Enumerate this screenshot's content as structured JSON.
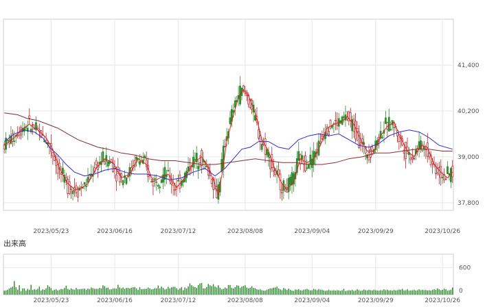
{
  "chart_data": [
    {
      "type": "candlestick",
      "x_ticks": [
        "2023/05/23",
        "2023/06/16",
        "2023/07/12",
        "2023/08/08",
        "2023/09/04",
        "2023/09/29",
        "2023/10/26"
      ],
      "y_ticks": [
        "41,400",
        "40,200",
        "39,000",
        "37,800"
      ],
      "ylim": [
        37600,
        42600
      ],
      "grid": true,
      "colors": {
        "up": "#2e8b2e",
        "down": "#b22222",
        "ma_short": "#e02020",
        "ma_mid": "#2a2ad0",
        "ma_long": "#8b2a2a"
      },
      "ma_short": [
        [
          0,
          39300
        ],
        [
          6,
          39500
        ],
        [
          10,
          39700
        ],
        [
          15,
          39850
        ],
        [
          20,
          39700
        ],
        [
          25,
          39500
        ],
        [
          29,
          39200
        ],
        [
          33,
          38700
        ],
        [
          38,
          38300
        ],
        [
          42,
          38150
        ],
        [
          45,
          38150
        ],
        [
          50,
          38300
        ],
        [
          55,
          38700
        ],
        [
          60,
          38950
        ],
        [
          65,
          38850
        ],
        [
          70,
          38450
        ],
        [
          75,
          38550
        ],
        [
          80,
          38950
        ],
        [
          85,
          38800
        ],
        [
          89,
          38350
        ],
        [
          93,
          38450
        ],
        [
          98,
          38550
        ],
        [
          103,
          38200
        ],
        [
          108,
          38450
        ],
        [
          113,
          38850
        ],
        [
          118,
          39000
        ],
        [
          121,
          38800
        ],
        [
          125,
          38400
        ],
        [
          128,
          38000
        ],
        [
          130,
          38500
        ],
        [
          133,
          39400
        ],
        [
          137,
          40100
        ],
        [
          140,
          40550
        ],
        [
          143,
          40750
        ],
        [
          146,
          40600
        ],
        [
          150,
          40150
        ],
        [
          154,
          39450
        ],
        [
          158,
          39150
        ],
        [
          162,
          38650
        ],
        [
          166,
          38300
        ],
        [
          169,
          38150
        ],
        [
          173,
          38350
        ],
        [
          177,
          38950
        ],
        [
          181,
          38850
        ],
        [
          185,
          38950
        ],
        [
          189,
          39300
        ],
        [
          193,
          39750
        ],
        [
          197,
          39850
        ],
        [
          201,
          39900
        ],
        [
          205,
          40050
        ],
        [
          209,
          39850
        ],
        [
          213,
          39450
        ],
        [
          217,
          39150
        ],
        [
          221,
          39150
        ],
        [
          225,
          39550
        ],
        [
          229,
          39800
        ],
        [
          233,
          39900
        ],
        [
          237,
          39500
        ],
        [
          241,
          39150
        ],
        [
          245,
          39000
        ],
        [
          249,
          39300
        ],
        [
          253,
          39250
        ],
        [
          257,
          38800
        ],
        [
          261,
          38600
        ],
        [
          265,
          38450
        ],
        [
          268,
          38600
        ]
      ],
      "ma_mid": [
        [
          0,
          39400
        ],
        [
          6,
          39600
        ],
        [
          12,
          39700
        ],
        [
          18,
          39650
        ],
        [
          23,
          39500
        ],
        [
          27,
          39250
        ],
        [
          32,
          39050
        ],
        [
          37,
          38800
        ],
        [
          42,
          38600
        ],
        [
          48,
          38500
        ],
        [
          54,
          38550
        ],
        [
          60,
          38650
        ],
        [
          66,
          38700
        ],
        [
          72,
          38600
        ],
        [
          78,
          38550
        ],
        [
          85,
          38550
        ],
        [
          92,
          38500
        ],
        [
          99,
          38400
        ],
        [
          106,
          38450
        ],
        [
          113,
          38600
        ],
        [
          120,
          38700
        ],
        [
          126,
          38500
        ],
        [
          132,
          38700
        ],
        [
          137,
          38950
        ],
        [
          142,
          39200
        ],
        [
          147,
          39250
        ],
        [
          152,
          39400
        ],
        [
          158,
          39400
        ],
        [
          164,
          39250
        ],
        [
          170,
          39200
        ],
        [
          176,
          39450
        ],
        [
          182,
          39550
        ],
        [
          188,
          39600
        ],
        [
          194,
          39550
        ],
        [
          200,
          39600
        ],
        [
          206,
          39450
        ],
        [
          212,
          39300
        ],
        [
          218,
          39250
        ],
        [
          224,
          39350
        ],
        [
          230,
          39550
        ],
        [
          236,
          39650
        ],
        [
          242,
          39700
        ],
        [
          248,
          39650
        ],
        [
          254,
          39500
        ],
        [
          260,
          39300
        ],
        [
          268,
          39200
        ]
      ],
      "ma_long": [
        [
          0,
          40150
        ],
        [
          8,
          40100
        ],
        [
          14,
          40000
        ],
        [
          20,
          39950
        ],
        [
          26,
          39850
        ],
        [
          32,
          39750
        ],
        [
          38,
          39600
        ],
        [
          44,
          39450
        ],
        [
          50,
          39350
        ],
        [
          56,
          39250
        ],
        [
          62,
          39200
        ],
        [
          70,
          39100
        ],
        [
          78,
          39050
        ],
        [
          86,
          38950
        ],
        [
          94,
          38900
        ],
        [
          102,
          38900
        ],
        [
          110,
          38850
        ],
        [
          118,
          38800
        ],
        [
          126,
          38800
        ],
        [
          134,
          38850
        ],
        [
          142,
          38900
        ],
        [
          150,
          38950
        ],
        [
          158,
          38900
        ],
        [
          166,
          38850
        ],
        [
          174,
          38850
        ],
        [
          182,
          38800
        ],
        [
          190,
          38800
        ],
        [
          198,
          38850
        ],
        [
          206,
          38950
        ],
        [
          214,
          39000
        ],
        [
          222,
          39100
        ],
        [
          230,
          39100
        ],
        [
          238,
          39150
        ],
        [
          246,
          39200
        ],
        [
          254,
          39200
        ],
        [
          262,
          39150
        ],
        [
          268,
          39150
        ]
      ]
    },
    {
      "type": "bar",
      "title": "出来高",
      "y_ticks": [
        "600",
        "0"
      ],
      "ylim": [
        0,
        900
      ],
      "values": [
        90,
        95,
        110,
        140,
        160,
        180,
        300,
        165,
        110,
        210,
        80,
        140,
        140,
        90,
        130,
        110,
        220,
        105,
        120,
        110,
        130,
        180,
        90,
        120,
        110,
        140,
        210,
        175,
        145,
        90,
        110,
        120,
        95,
        105,
        130,
        120,
        150,
        200,
        130,
        110,
        140,
        120,
        110,
        150,
        120,
        120,
        130,
        130,
        135,
        110,
        135,
        125,
        160,
        145,
        130,
        130,
        130,
        150,
        140,
        210,
        190,
        150,
        160,
        115,
        120,
        140,
        140,
        135,
        220,
        160,
        140,
        160,
        130,
        150,
        150,
        140,
        155,
        165,
        170,
        140,
        105,
        165,
        125,
        125,
        130,
        130,
        160,
        140,
        120,
        125,
        145,
        140,
        205,
        140,
        180,
        150,
        115,
        130,
        175,
        140,
        165,
        175,
        175,
        145,
        110,
        140,
        170,
        100,
        160,
        140,
        185,
        250,
        210,
        180,
        170,
        150,
        215,
        250,
        260,
        140,
        140,
        170,
        240,
        210,
        190,
        230,
        180,
        160,
        210,
        155,
        120,
        130,
        160,
        140,
        215,
        215,
        150,
        140,
        170,
        210,
        200,
        150,
        180,
        195,
        210,
        160,
        140,
        155,
        190,
        150,
        145,
        120,
        110,
        120,
        100,
        90,
        90,
        110,
        125,
        140,
        140,
        155,
        160,
        180,
        140,
        120,
        100,
        150,
        130,
        105,
        135,
        110,
        90,
        85,
        115,
        110,
        120,
        100,
        95,
        110,
        120,
        130,
        110,
        95,
        100,
        130,
        115,
        100,
        125,
        110,
        110,
        95,
        85,
        95,
        110,
        90,
        95,
        100,
        90,
        100,
        95,
        85,
        100,
        130,
        80,
        90,
        100,
        95,
        110,
        85,
        95,
        120,
        100,
        85,
        95,
        115,
        100,
        95,
        110,
        100,
        95,
        110,
        100,
        95,
        90,
        100,
        95,
        120,
        100,
        110,
        95,
        100,
        90,
        105,
        95,
        100,
        115,
        110,
        130,
        95,
        100,
        120,
        90,
        95,
        100,
        110,
        90,
        100,
        120,
        100,
        110,
        100,
        105,
        95,
        100,
        90,
        110,
        120,
        110,
        140,
        120,
        100,
        110,
        135,
        120,
        90,
        100,
        110,
        160
      ]
    }
  ]
}
